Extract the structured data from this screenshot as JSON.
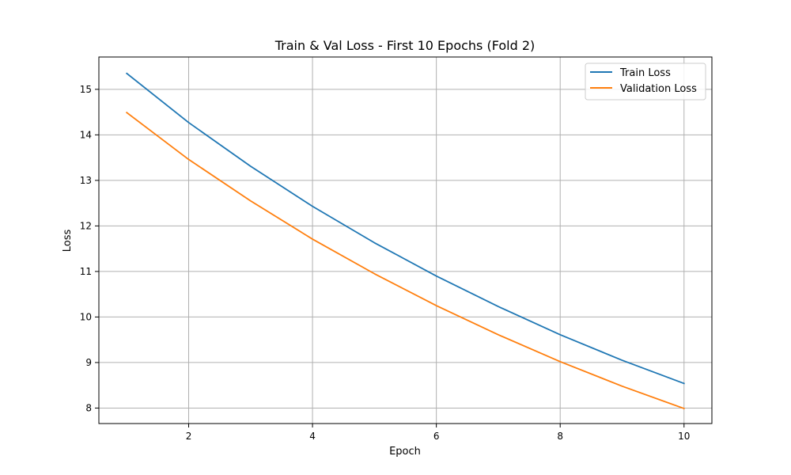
{
  "chart_data": {
    "type": "line",
    "title": "Train & Val Loss - First 10 Epochs (Fold 2)",
    "xlabel": "Epoch",
    "ylabel": "Loss",
    "x": [
      1,
      2,
      3,
      4,
      5,
      6,
      7,
      8,
      9,
      10
    ],
    "xlim": [
      0.55,
      10.45
    ],
    "ylim": [
      7.66,
      15.71
    ],
    "x_ticks": [
      2,
      4,
      6,
      8,
      10
    ],
    "y_ticks": [
      8,
      9,
      10,
      11,
      12,
      13,
      14,
      15
    ],
    "grid": true,
    "legend_position": "top-right",
    "series": [
      {
        "name": "Train Loss",
        "color": "#1f77b4",
        "values": [
          15.35,
          14.27,
          13.31,
          12.43,
          11.63,
          10.9,
          10.23,
          9.61,
          9.05,
          8.54
        ]
      },
      {
        "name": "Validation Loss",
        "color": "#ff7f0e",
        "values": [
          14.49,
          13.46,
          12.55,
          11.71,
          10.95,
          10.25,
          9.61,
          9.02,
          8.48,
          7.99
        ]
      }
    ]
  }
}
